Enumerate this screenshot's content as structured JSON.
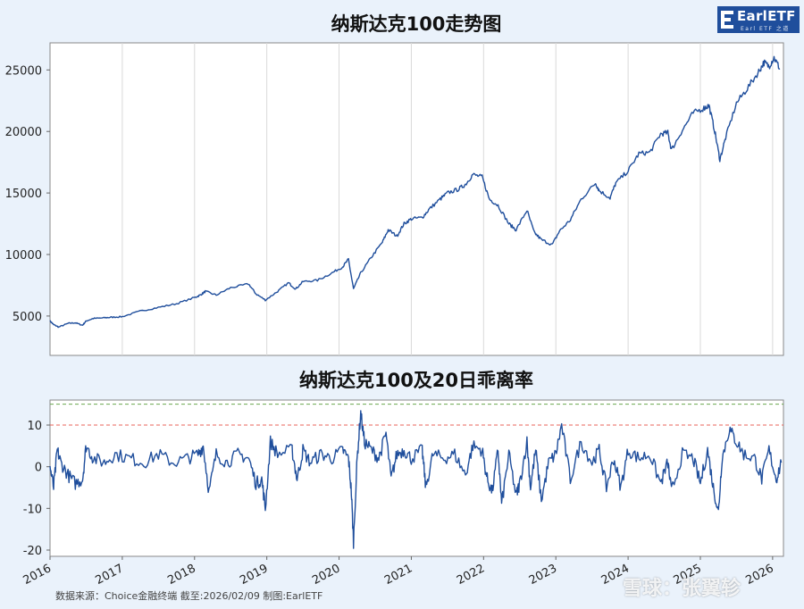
{
  "logo": {
    "text": "EarlETF",
    "sub": "Earl ETF 之道"
  },
  "source_text": "数据来源：Choice金融终端 截至:2026/02/09 制图:EarlETF",
  "watermark": "雪球：张翼轸",
  "colors": {
    "line": "#1f4e9c",
    "ref_red": "#e8635a",
    "ref_green": "#6aa84f",
    "background": "#eaf2fb"
  },
  "chart_data": [
    {
      "type": "line",
      "title": "纳斯达克100走势图",
      "xlabel": "",
      "ylabel": "",
      "xlim": [
        2016.0,
        2026.15
      ],
      "ylim": [
        1800,
        27200
      ],
      "yticks": [
        5000,
        10000,
        15000,
        20000,
        25000
      ],
      "xticks": [
        2016,
        2017,
        2018,
        2019,
        2020,
        2021,
        2022,
        2023,
        2024,
        2025,
        2026
      ],
      "grid": "vertical",
      "series": [
        {
          "name": "纳斯达克100",
          "x": [
            2016.0,
            2016.05,
            2016.12,
            2016.25,
            2016.35,
            2016.45,
            2016.5,
            2016.6,
            2016.75,
            2016.85,
            2017.0,
            2017.25,
            2017.5,
            2017.75,
            2018.0,
            2018.08,
            2018.15,
            2018.3,
            2018.5,
            2018.75,
            2018.85,
            2018.98,
            2019.15,
            2019.3,
            2019.4,
            2019.5,
            2019.7,
            2019.9,
            2020.05,
            2020.13,
            2020.2,
            2020.3,
            2020.45,
            2020.6,
            2020.68,
            2020.8,
            2020.9,
            2021.0,
            2021.15,
            2021.25,
            2021.4,
            2021.5,
            2021.65,
            2021.75,
            2021.85,
            2021.98,
            2022.08,
            2022.2,
            2022.35,
            2022.45,
            2022.6,
            2022.7,
            2022.8,
            2022.95,
            2023.05,
            2023.2,
            2023.35,
            2023.55,
            2023.6,
            2023.75,
            2023.83,
            2024.0,
            2024.15,
            2024.3,
            2024.45,
            2024.55,
            2024.6,
            2024.75,
            2024.9,
            2025.05,
            2025.12,
            2025.2,
            2025.27,
            2025.35,
            2025.5,
            2025.65,
            2025.8,
            2025.88,
            2025.95,
            2026.02,
            2026.1
          ],
          "y": [
            4600,
            4300,
            4100,
            4400,
            4450,
            4250,
            4600,
            4800,
            4850,
            4900,
            4950,
            5400,
            5700,
            6000,
            6500,
            6700,
            7000,
            6700,
            7300,
            7600,
            6800,
            6300,
            7000,
            7700,
            7200,
            7800,
            7900,
            8500,
            9000,
            9600,
            7200,
            8500,
            9800,
            11000,
            12000,
            11500,
            12500,
            12900,
            13000,
            13700,
            14500,
            15000,
            15300,
            15700,
            16500,
            16300,
            14500,
            14000,
            12500,
            12000,
            13600,
            11800,
            11200,
            10800,
            11900,
            12800,
            14500,
            15800,
            15200,
            14600,
            15800,
            16800,
            18200,
            18300,
            19800,
            19900,
            18500,
            20100,
            21500,
            21900,
            22100,
            20000,
            17700,
            19500,
            22300,
            23500,
            24800,
            25600,
            25300,
            26000,
            25100
          ]
        }
      ]
    },
    {
      "type": "line",
      "title": "纳斯达克100及20日乖离率",
      "xlabel": "",
      "ylabel": "",
      "xlim": [
        2016.0,
        2026.15
      ],
      "ylim": [
        -21.5,
        16
      ],
      "yticks": [
        -20,
        -10,
        0,
        10
      ],
      "xticks": [
        2016,
        2017,
        2018,
        2019,
        2020,
        2021,
        2022,
        2023,
        2024,
        2025,
        2026
      ],
      "reference_lines": [
        {
          "y": 10,
          "color": "red",
          "style": "dashed"
        },
        {
          "y": 15,
          "color": "green",
          "style": "dashed"
        }
      ],
      "series": [
        {
          "name": "20日乖离率",
          "x": [
            2016.0,
            2016.05,
            2016.1,
            2016.15,
            2016.25,
            2016.35,
            2016.45,
            2016.5,
            2016.6,
            2016.75,
            2016.9,
            2017.1,
            2017.3,
            2017.5,
            2017.7,
            2017.9,
            2018.05,
            2018.12,
            2018.2,
            2018.3,
            2018.45,
            2018.6,
            2018.75,
            2018.85,
            2018.93,
            2018.98,
            2019.05,
            2019.15,
            2019.35,
            2019.42,
            2019.5,
            2019.6,
            2019.75,
            2019.9,
            2020.05,
            2020.13,
            2020.17,
            2020.2,
            2020.25,
            2020.3,
            2020.35,
            2020.45,
            2020.55,
            2020.65,
            2020.72,
            2020.8,
            2020.9,
            2021.0,
            2021.15,
            2021.2,
            2021.3,
            2021.45,
            2021.6,
            2021.75,
            2021.85,
            2021.98,
            2022.05,
            2022.12,
            2022.2,
            2022.25,
            2022.35,
            2022.45,
            2022.5,
            2022.6,
            2022.65,
            2022.72,
            2022.8,
            2022.9,
            2023.0,
            2023.08,
            2023.2,
            2023.35,
            2023.5,
            2023.6,
            2023.7,
            2023.8,
            2023.9,
            2024.0,
            2024.15,
            2024.3,
            2024.45,
            2024.55,
            2024.6,
            2024.75,
            2024.9,
            2025.0,
            2025.1,
            2025.18,
            2025.25,
            2025.3,
            2025.4,
            2025.5,
            2025.6,
            2025.75,
            2025.85,
            2025.95,
            2026.05,
            2026.12
          ],
          "y": [
            0,
            -5,
            4,
            1,
            -2,
            -4,
            -3,
            5,
            2,
            1,
            3,
            2,
            1,
            3,
            1,
            2,
            3,
            5,
            -6,
            3,
            1,
            3,
            2,
            -4,
            -3,
            -10,
            6,
            3,
            4,
            -3,
            4,
            1,
            3,
            2,
            4,
            2,
            -6,
            -18,
            2,
            13,
            6,
            4,
            2,
            8,
            -3,
            3,
            4,
            2,
            4,
            -5,
            3,
            2,
            3,
            -2,
            5,
            4,
            -3,
            -6,
            4,
            -9,
            3,
            -7,
            -4,
            6,
            -5,
            4,
            -8,
            1,
            3,
            10,
            -3,
            6,
            1,
            4,
            -5,
            2,
            -5,
            4,
            2,
            3,
            -4,
            1,
            -6,
            3,
            2,
            -4,
            4,
            -5,
            -11,
            2,
            9,
            6,
            3,
            2,
            -3,
            4,
            -3,
            1
          ]
        }
      ]
    }
  ]
}
